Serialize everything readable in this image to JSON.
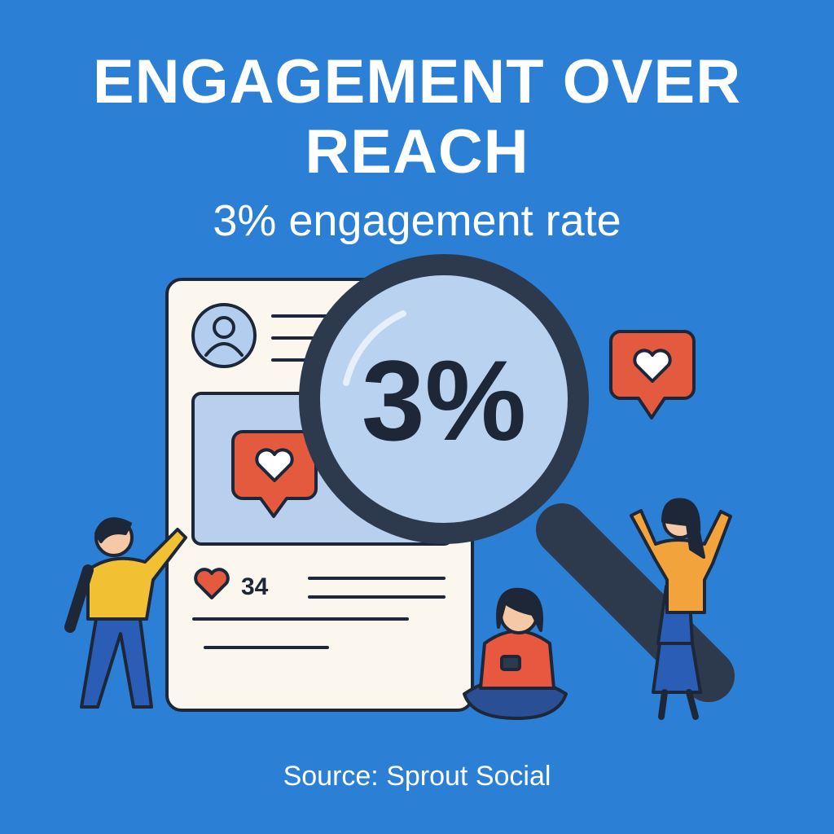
{
  "header": {
    "title": "ENGAGEMENT OVER REACH",
    "subtitle": "3% engagement rate"
  },
  "illustration": {
    "magnifier_text": "3%",
    "like_count": "34"
  },
  "footer": {
    "source": "Source: Sprout Social"
  }
}
